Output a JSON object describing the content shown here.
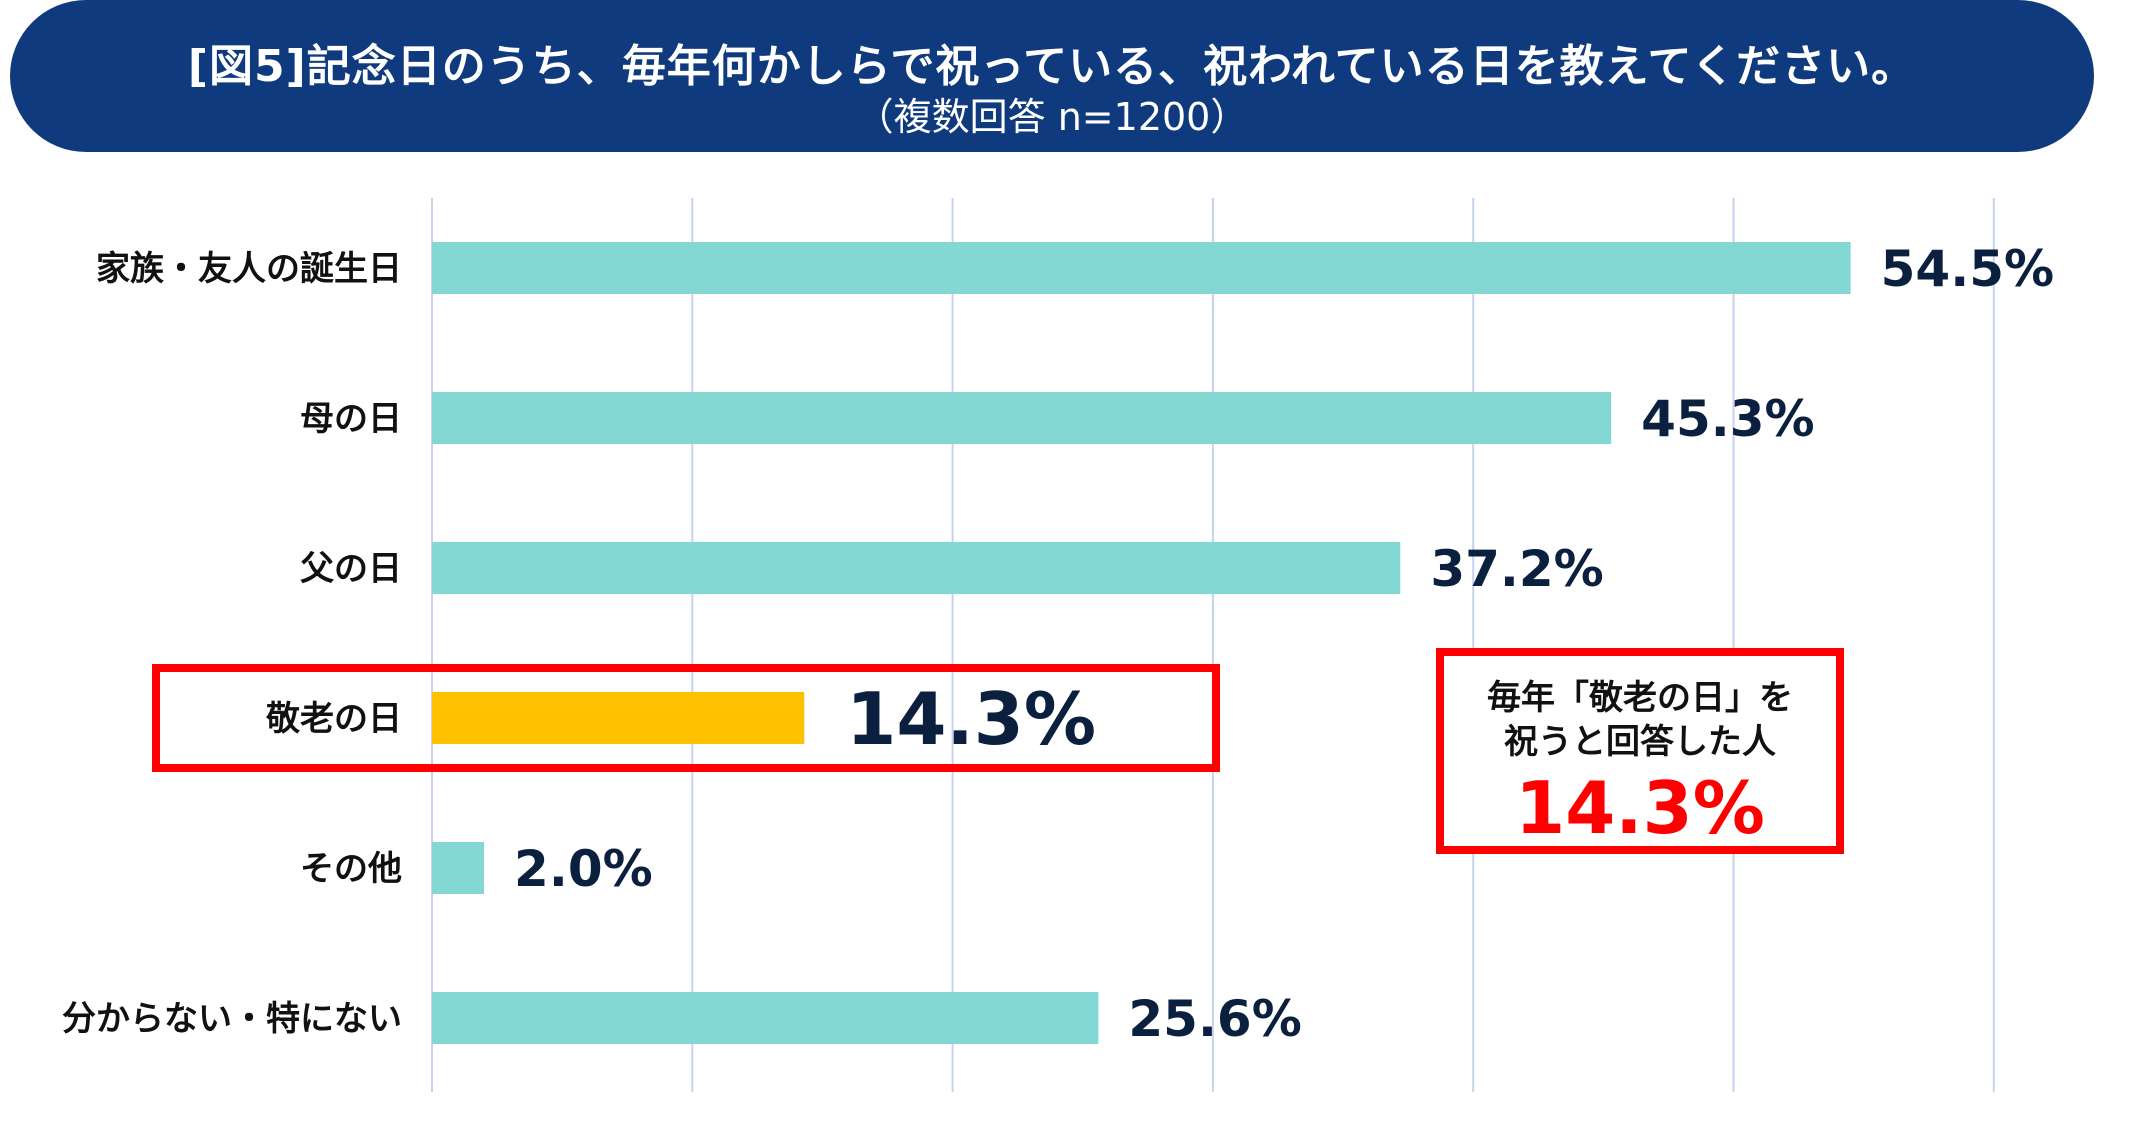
{
  "header": {
    "title": "[図5]記念日のうち、毎年何かしらで祝っている、祝われている日を教えてください。",
    "subtitle": "（複数回答 n=1200）"
  },
  "chart_data": {
    "type": "bar",
    "orientation": "horizontal",
    "title": "[図5]記念日のうち、毎年何かしらで祝っている、祝われている日を教えてください。",
    "subtitle": "（複数回答 n=1200）",
    "categories": [
      "家族・友人の誕生日",
      "母の日",
      "父の日",
      "敬老の日",
      "その他",
      "分からない・特にない"
    ],
    "values": [
      54.5,
      45.3,
      37.2,
      14.3,
      2.0,
      25.6
    ],
    "value_labels": [
      "54.5%",
      "45.3%",
      "37.2%",
      "14.3%",
      "2.0%",
      "25.6%"
    ],
    "highlight_index": 3,
    "xlim": [
      0,
      60
    ],
    "grid": true,
    "colors": {
      "bar": "#83d8d4",
      "highlight": "#ffc000",
      "highlight_box": "#ff0000",
      "grid": "#c5d3ee"
    }
  },
  "callout": {
    "line1": "毎年「敬老の日」を",
    "line2": "祝うと回答した人",
    "value": "14.3%"
  },
  "colors": {
    "banner": "#0f3a7e",
    "value_text": "#0b1f3f",
    "accent_red": "#ff0000"
  }
}
